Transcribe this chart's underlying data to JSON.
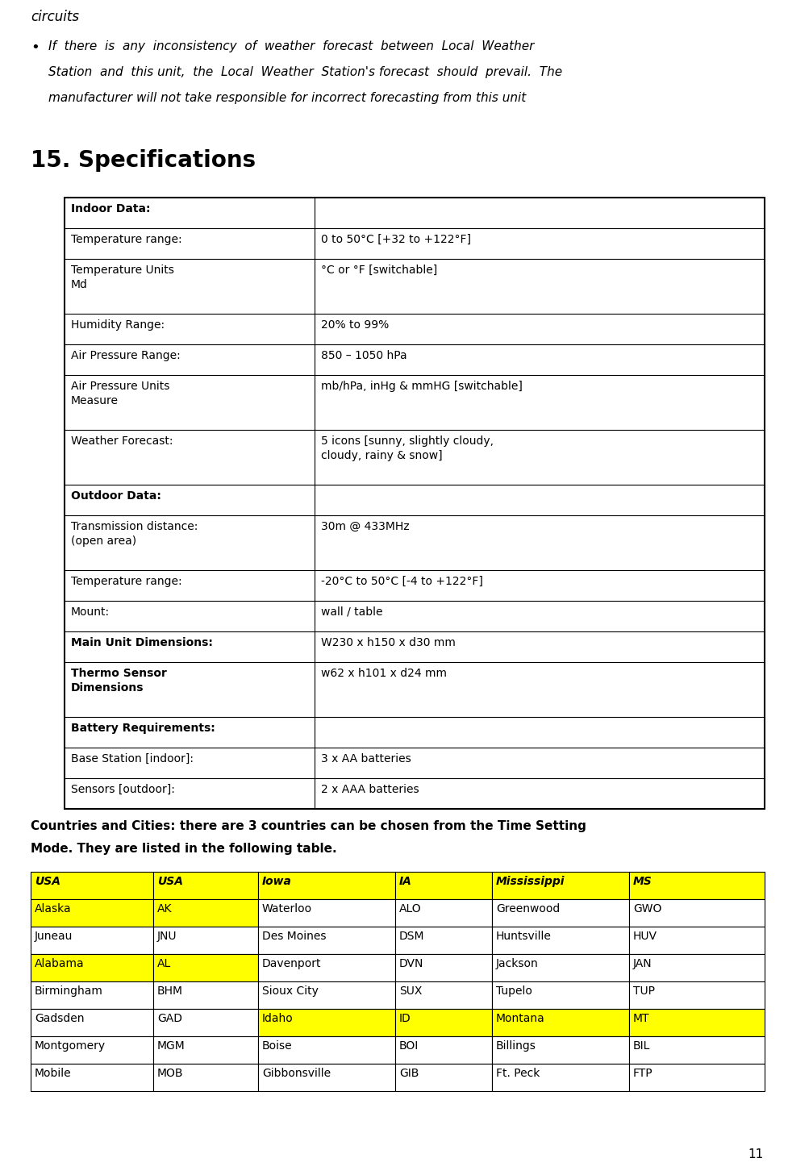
{
  "page_number": "11",
  "top_text_italic": "circuits",
  "bullet_lines": [
    "If  there  is  any  inconsistency  of  weather  forecast  between  Local  Weather",
    "Station  and  this unit,  the  Local  Weather  Station's forecast  should  prevail.  The",
    "manufacturer will not take responsible for incorrect forecasting from this unit"
  ],
  "section_title": "15. Specifications",
  "spec_table": [
    {
      "col1": "Indoor Data:",
      "col2": "",
      "bold": true,
      "multiline": false
    },
    {
      "col1": "Temperature range:",
      "col2": "0 to 50°C [+32 to +122°F]",
      "bold": false,
      "multiline": false
    },
    {
      "col1": "Temperature Units\nMd",
      "col2": "°C or °F [switchable]",
      "bold": false,
      "multiline": true
    },
    {
      "col1": "Humidity Range:",
      "col2": "20% to 99%",
      "bold": false,
      "multiline": false
    },
    {
      "col1": "Air Pressure Range:",
      "col2": "850 – 1050 hPa",
      "bold": false,
      "multiline": false
    },
    {
      "col1": "Air Pressure Units\nMeasure",
      "col2": "mb/hPa, inHg & mmHG [switchable]",
      "bold": false,
      "multiline": true
    },
    {
      "col1": "Weather Forecast:",
      "col2": "5 icons [sunny, slightly cloudy,\ncloudy, rainy & snow]",
      "bold": false,
      "multiline": true
    },
    {
      "col1": "Outdoor Data:",
      "col2": "",
      "bold": true,
      "multiline": false
    },
    {
      "col1": "Transmission distance:\n(open area)",
      "col2": "30m @ 433MHz",
      "bold": false,
      "multiline": true
    },
    {
      "col1": "Temperature range:",
      "col2": "-20°C to 50°C [-4 to +122°F]",
      "bold": false,
      "multiline": false
    },
    {
      "col1": "Mount:",
      "col2": "wall / table",
      "bold": false,
      "multiline": false
    },
    {
      "col1": "Main Unit Dimensions:",
      "col2": "W230 x h150 x d30 mm",
      "bold": true,
      "multiline": false
    },
    {
      "col1": "Thermo Sensor\nDimensions",
      "col2": "w62 x h101 x d24 mm",
      "bold": true,
      "multiline": true
    },
    {
      "col1": "Battery Requirements:",
      "col2": "",
      "bold": true,
      "multiline": false
    },
    {
      "col1": "Base Station [indoor]:",
      "col2": "3 x AA batteries",
      "bold": false,
      "multiline": false
    },
    {
      "col1": "Sensors [outdoor]:",
      "col2": "2 x AAA batteries",
      "bold": false,
      "multiline": false
    }
  ],
  "countries_bold_text": "Countries and Cities: there are 3 countries can be chosen from the Time Setting\nMode. They are listed in the following table.",
  "city_header": [
    "USA",
    "USA",
    "Iowa",
    "IA",
    "Mississippi",
    "MS"
  ],
  "city_rows": [
    [
      "Alaska",
      "AK",
      "Waterloo",
      "ALO",
      "Greenwood",
      "GWO"
    ],
    [
      "Juneau",
      "JNU",
      "Des Moines",
      "DSM",
      "Huntsville",
      "HUV"
    ],
    [
      "Alabama",
      "AL",
      "Davenport",
      "DVN",
      "Jackson",
      "JAN"
    ],
    [
      "Birmingham",
      "BHM",
      "Sioux City",
      "SUX",
      "Tupelo",
      "TUP"
    ],
    [
      "Gadsden",
      "GAD",
      "Idaho",
      "ID",
      "Montana",
      "MT"
    ],
    [
      "Montgomery",
      "MGM",
      "Boise",
      "BOI",
      "Billings",
      "BIL"
    ],
    [
      "Mobile",
      "MOB",
      "Gibbonsville",
      "GIB",
      "Ft. Peck",
      "FTP"
    ]
  ],
  "row_cell_colors": [
    [
      "yellow",
      "yellow",
      "yellow",
      "yellow",
      "yellow",
      "yellow"
    ],
    [
      "yellow",
      "yellow",
      "white",
      "white",
      "white",
      "white"
    ],
    [
      "white",
      "white",
      "white",
      "white",
      "white",
      "white"
    ],
    [
      "yellow",
      "yellow",
      "white",
      "white",
      "white",
      "white"
    ],
    [
      "white",
      "white",
      "white",
      "white",
      "white",
      "white"
    ],
    [
      "white",
      "white",
      "yellow",
      "yellow",
      "yellow",
      "yellow"
    ],
    [
      "white",
      "white",
      "white",
      "white",
      "white",
      "white"
    ],
    [
      "white",
      "white",
      "white",
      "white",
      "white",
      "white"
    ]
  ],
  "yellow_color": "#FFFF00",
  "white_color": "#FFFFFF",
  "black_color": "#000000",
  "bg_color": "#FFFFFF"
}
